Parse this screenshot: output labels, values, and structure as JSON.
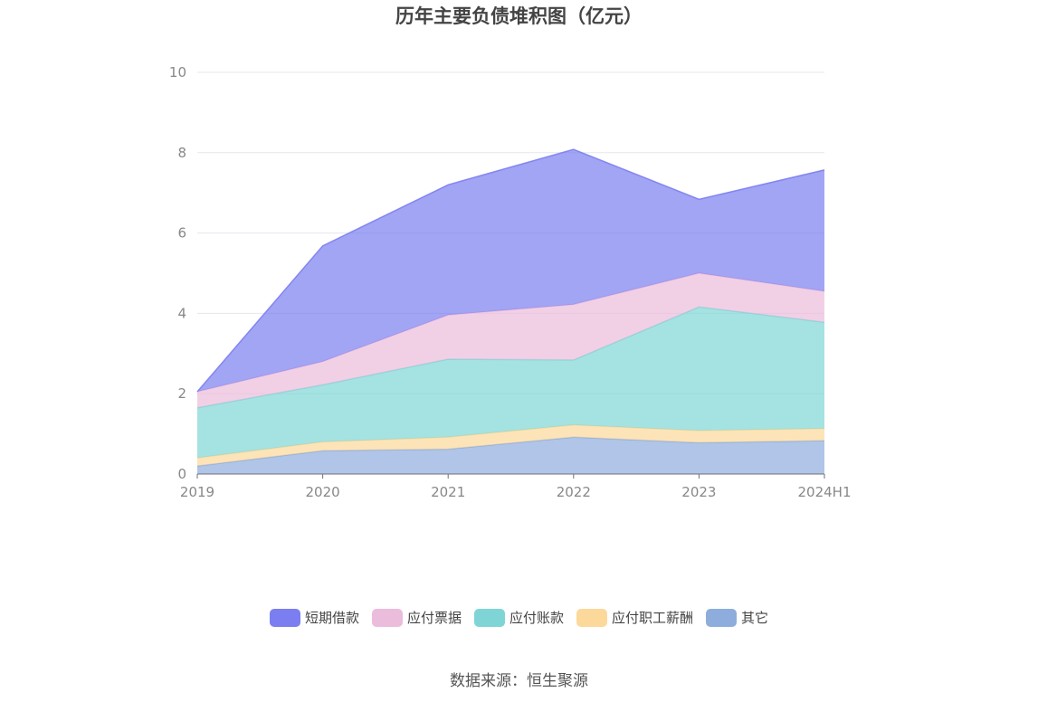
{
  "chart_data": {
    "type": "area",
    "stacked": true,
    "title": "历年主要负债堆积图（亿元）",
    "categories": [
      "2019",
      "2020",
      "2021",
      "2022",
      "2023",
      "2024H1"
    ],
    "series": [
      {
        "name": "其它",
        "color": "#8eaddd",
        "values": [
          0.2,
          0.58,
          0.62,
          0.92,
          0.78,
          0.83
        ]
      },
      {
        "name": "应付职工薪酬",
        "color": "#fcd99a",
        "values": [
          0.2,
          0.22,
          0.3,
          0.3,
          0.3,
          0.3
        ]
      },
      {
        "name": "应付账款",
        "color": "#7fd5d6",
        "values": [
          1.25,
          1.42,
          1.94,
          1.62,
          3.08,
          2.65
        ]
      },
      {
        "name": "应付票据",
        "color": "#ebbcdb",
        "values": [
          0.4,
          0.58,
          1.1,
          1.38,
          0.84,
          0.77
        ]
      },
      {
        "name": "短期借款",
        "color": "#7b7ef0",
        "values": [
          0.0,
          2.88,
          3.24,
          3.86,
          1.84,
          3.02
        ]
      }
    ],
    "ylim": [
      0,
      10
    ],
    "yticks": [
      "0",
      "2",
      "4",
      "6",
      "8",
      "10"
    ],
    "grid": true,
    "legend_position": "bottom-center"
  },
  "legend_order": [
    "短期借款",
    "应付票据",
    "应付账款",
    "应付职工薪酬",
    "其它"
  ],
  "source": "数据来源：恒生聚源"
}
